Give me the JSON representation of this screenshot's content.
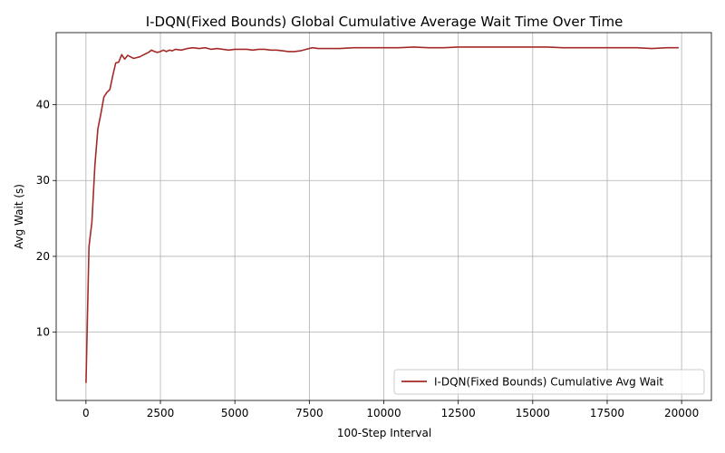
{
  "chart_data": {
    "type": "line",
    "title": "I-DQN(Fixed Bounds) Global Cumulative Average Wait Time Over Time",
    "xlabel": "100-Step Interval",
    "ylabel": "Avg Wait (s)",
    "xlim": [
      -1000,
      21000
    ],
    "ylim": [
      1.0,
      49.5
    ],
    "xticks": [
      0,
      2500,
      5000,
      7500,
      10000,
      12500,
      15000,
      17500,
      20000
    ],
    "xtick_labels": [
      "0",
      "2500",
      "5000",
      "7500",
      "10000",
      "12500",
      "15000",
      "17500",
      "20000"
    ],
    "yticks": [
      10,
      20,
      30,
      40
    ],
    "ytick_labels": [
      "10",
      "20",
      "30",
      "40"
    ],
    "grid": true,
    "legend_position": "lower-right",
    "series": [
      {
        "name": "I-DQN(Fixed Bounds) Cumulative Avg Wait",
        "color": "#a52a2a",
        "x": [
          0,
          100,
          200,
          300,
          400,
          500,
          600,
          700,
          800,
          900,
          1000,
          1100,
          1200,
          1300,
          1400,
          1500,
          1600,
          1700,
          1800,
          1900,
          2000,
          2100,
          2200,
          2300,
          2400,
          2500,
          2600,
          2700,
          2800,
          2900,
          3000,
          3200,
          3400,
          3600,
          3800,
          4000,
          4200,
          4400,
          4600,
          4800,
          5000,
          5200,
          5400,
          5600,
          5800,
          6000,
          6200,
          6400,
          6600,
          6800,
          7000,
          7200,
          7400,
          7600,
          7800,
          8000,
          8500,
          9000,
          9500,
          10000,
          10500,
          11000,
          11500,
          12000,
          12500,
          13000,
          13500,
          14000,
          14500,
          15000,
          15500,
          16000,
          16500,
          17000,
          17500,
          18000,
          18500,
          19000,
          19500,
          19900
        ],
        "values": [
          3.3,
          21.3,
          24.5,
          32.0,
          36.8,
          38.8,
          41.0,
          41.6,
          42.0,
          43.8,
          45.5,
          45.6,
          46.6,
          46.0,
          46.5,
          46.3,
          46.1,
          46.2,
          46.3,
          46.5,
          46.7,
          46.9,
          47.2,
          47.0,
          46.9,
          47.0,
          47.2,
          47.0,
          47.2,
          47.1,
          47.3,
          47.2,
          47.4,
          47.5,
          47.4,
          47.5,
          47.3,
          47.4,
          47.3,
          47.2,
          47.3,
          47.3,
          47.3,
          47.2,
          47.3,
          47.3,
          47.2,
          47.2,
          47.1,
          47.0,
          47.0,
          47.1,
          47.3,
          47.5,
          47.4,
          47.4,
          47.4,
          47.5,
          47.5,
          47.5,
          47.5,
          47.6,
          47.5,
          47.5,
          47.6,
          47.6,
          47.6,
          47.6,
          47.6,
          47.6,
          47.6,
          47.5,
          47.5,
          47.5,
          47.5,
          47.5,
          47.5,
          47.4,
          47.5,
          47.5
        ]
      }
    ]
  }
}
